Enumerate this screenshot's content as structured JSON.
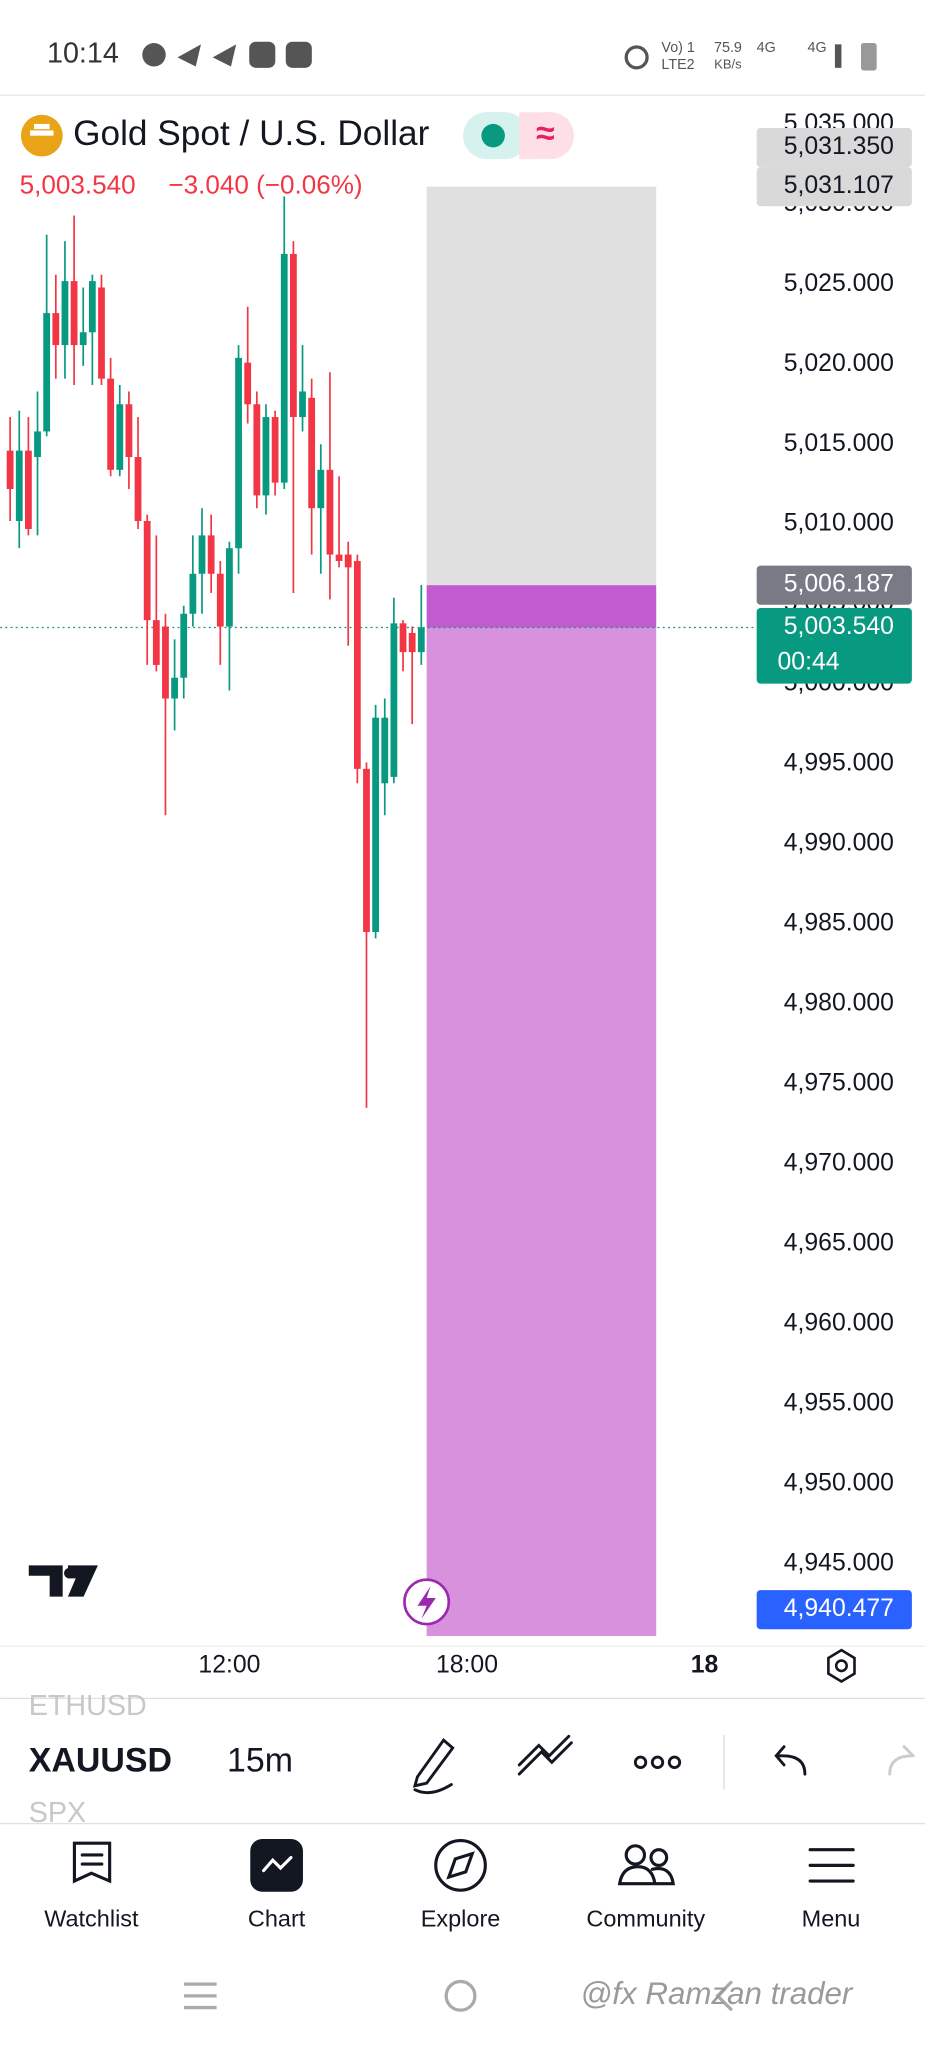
{
  "status_bar": {
    "time": "10:14",
    "network": "Vo) 1",
    "network_sub": "LTE2",
    "speed": "75.9",
    "speed_unit": "KB/s",
    "signal_1": "4G",
    "signal_2": "4G"
  },
  "header": {
    "title": "Gold Spot / U.S. Dollar",
    "price": "5,003.540",
    "change": "−3.040 (−0.06%)",
    "indicator_icon": "≈"
  },
  "chart_data": {
    "type": "candlestick",
    "up_color": "#089981",
    "down_color": "#f23645",
    "open": [
      5014.6,
      5010.2,
      5014.6,
      5014.2,
      5015.8,
      5023.2,
      5021.2,
      5025.2,
      5021.2,
      5022.0,
      5024.8,
      5019.1,
      5013.4,
      5017.5,
      5014.2,
      5010.2,
      5004.0,
      5003.6,
      4999.1,
      5000.4,
      5004.4,
      5006.9,
      5009.3,
      5006.9,
      5003.6,
      5008.5,
      5020.1,
      5017.5,
      5011.8,
      5016.7,
      5012.6,
      5026.9,
      5016.7,
      5017.9,
      5011.0,
      5013.4,
      5008.1,
      5008.1,
      5007.7,
      4994.7,
      4984.5,
      4993.8,
      4994.2,
      5003.8,
      5003.2,
      5002.0
    ],
    "high": [
      5016.7,
      5017.1,
      5016.7,
      5018.3,
      5028.1,
      5025.6,
      5027.7,
      5029.3,
      5024.8,
      5025.6,
      5025.6,
      5020.4,
      5018.7,
      5018.3,
      5016.7,
      5010.6,
      5009.3,
      5004.4,
      5002.8,
      5004.9,
      5009.3,
      5011.0,
      5010.6,
      5007.7,
      5008.9,
      5021.2,
      5023.6,
      5018.3,
      5017.5,
      5017.1,
      5030.5,
      5027.7,
      5021.2,
      5019.1,
      5015.0,
      5019.5,
      5013.0,
      5008.9,
      5008.1,
      4995.1,
      4998.7,
      4999.1,
      5005.4,
      5004.0,
      5003.6,
      5006.2
    ],
    "low": [
      5010.2,
      5008.5,
      5009.3,
      5009.3,
      5015.5,
      5019.1,
      5019.1,
      5018.7,
      5019.9,
      5018.7,
      5018.7,
      5013.0,
      5013.0,
      5012.2,
      5009.7,
      5001.2,
      5000.8,
      4991.8,
      4997.1,
      4999.1,
      5003.6,
      5004.4,
      5005.7,
      5001.2,
      4999.6,
      5006.9,
      5016.3,
      5011.0,
      5010.6,
      5011.8,
      5012.2,
      5005.7,
      5015.8,
      5008.1,
      5006.9,
      5005.3,
      5007.3,
      5002.4,
      4993.8,
      4973.5,
      4984.1,
      4991.8,
      4993.8,
      5000.8,
      4997.5,
      5001.2
    ],
    "close": [
      5012.2,
      5014.6,
      5009.7,
      5015.8,
      5023.2,
      5021.2,
      5025.2,
      5021.2,
      5022.0,
      5025.2,
      5019.1,
      5013.4,
      5017.5,
      5014.2,
      5010.2,
      5004.0,
      5001.2,
      4999.1,
      5000.4,
      5004.4,
      5006.9,
      5009.3,
      5006.9,
      5003.6,
      5008.5,
      5020.4,
      5017.5,
      5011.8,
      5016.7,
      5012.6,
      5026.9,
      5016.7,
      5018.3,
      5011.0,
      5013.4,
      5008.1,
      5007.7,
      5007.3,
      4994.7,
      4984.5,
      4997.9,
      4997.9,
      5003.8,
      5002.0,
      5002.0,
      5003.54
    ],
    "xlim": [
      -1.1,
      81.7
    ],
    "xticks": [
      {
        "value": 24,
        "label": "12:00"
      },
      {
        "value": 50,
        "label": "18:00"
      },
      {
        "value": 76,
        "label": "18"
      }
    ],
    "ylim": [
      4939.84,
      5036.66
    ],
    "yticks": [
      {
        "value": 4945,
        "label": "4,945.000"
      },
      {
        "value": 4950,
        "label": "4,950.000"
      },
      {
        "value": 4955,
        "label": "4,955.000"
      },
      {
        "value": 4960,
        "label": "4,960.000"
      },
      {
        "value": 4965,
        "label": "4,965.000"
      },
      {
        "value": 4970,
        "label": "4,970.000"
      },
      {
        "value": 4975,
        "label": "4,975.000"
      },
      {
        "value": 4980,
        "label": "4,980.000"
      },
      {
        "value": 4985,
        "label": "4,985.000"
      },
      {
        "value": 4990,
        "label": "4,990.000"
      },
      {
        "value": 4995,
        "label": "4,995.000"
      },
      {
        "value": 5000,
        "label": "5,000.000"
      },
      {
        "value": 5005,
        "label": "5,005.000"
      },
      {
        "value": 5010,
        "label": "5,010.000"
      },
      {
        "value": 5015,
        "label": "5,015.000"
      },
      {
        "value": 5020,
        "label": "5,020.000"
      },
      {
        "value": 5025,
        "label": "5,025.000"
      },
      {
        "value": 5030,
        "label": "5,030.000"
      },
      {
        "value": 5035,
        "label": "5,035.000"
      }
    ],
    "position": {
      "top": 5031.107,
      "entry": 5006.187,
      "bottom": 4940.477,
      "top_color": "#e0e0e0",
      "entry_color": "#c25bd0",
      "zone_color": "#d891dc"
    },
    "price_tags": [
      {
        "value": 5031.107,
        "label": "5,031.107",
        "color": "#d9d9d9",
        "text_color": "#131722"
      },
      {
        "value": 5031.35,
        "label": "5,031.350",
        "color": "#d9d9d9",
        "text_color": "#131722"
      },
      {
        "value": 5006.187,
        "label": "5,006.187",
        "color": "#787b86",
        "text_color": "#ffffff"
      },
      {
        "value": 5003.54,
        "label": "5,003.540",
        "color": "#089981",
        "text_color": "#ffffff",
        "countdown": "00:44"
      },
      {
        "value": 4940.477,
        "label": "4,940.477",
        "color": "#2962ff",
        "text_color": "#ffffff"
      }
    ]
  },
  "toolbar": {
    "prev_symbol": "ETHUSD",
    "symbol": "XAUUSD",
    "interval": "15m",
    "next_symbol": "SPX"
  },
  "nav": [
    "Watchlist",
    "Chart",
    "Explore",
    "Community",
    "Menu"
  ],
  "watermark": "@fx Ramzan trader"
}
